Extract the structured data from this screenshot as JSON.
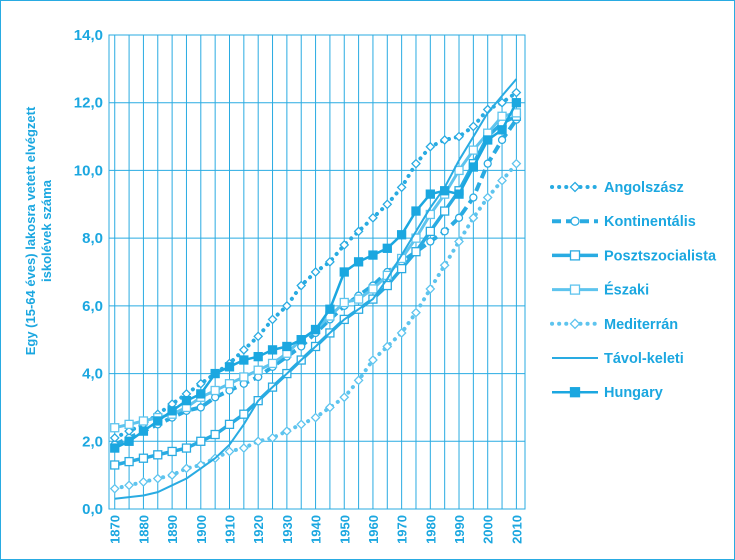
{
  "chart_data": {
    "type": "line",
    "title": "",
    "ylabel": "Egy (15-64 éves) lakosra vetett elvégzett iskolévek száma",
    "xlabel": "",
    "ylim": [
      0,
      14
    ],
    "yticks": [
      "0,0",
      "2,0",
      "4,0",
      "6,0",
      "8,0",
      "10,0",
      "12,0",
      "14,0"
    ],
    "xticks": [
      "1870",
      "1880",
      "1890",
      "1900",
      "1910",
      "1920",
      "1930",
      "1940",
      "1950",
      "1960",
      "1970",
      "1980",
      "1990",
      "2000",
      "2010"
    ],
    "x": [
      1870,
      1875,
      1880,
      1885,
      1890,
      1895,
      1900,
      1905,
      1910,
      1915,
      1920,
      1925,
      1930,
      1935,
      1940,
      1945,
      1950,
      1955,
      1960,
      1965,
      1970,
      1975,
      1980,
      1985,
      1990,
      1995,
      2000,
      2005,
      2010
    ],
    "series": [
      {
        "name": "Angolszász",
        "style": "dotted-diamond",
        "color": "#29abe2",
        "values": [
          2.1,
          2.3,
          2.5,
          2.8,
          3.1,
          3.4,
          3.7,
          4.0,
          4.3,
          4.7,
          5.1,
          5.6,
          6.0,
          6.6,
          7.0,
          7.3,
          7.8,
          8.2,
          8.6,
          9.0,
          9.5,
          10.2,
          10.7,
          10.9,
          11.0,
          11.3,
          11.8,
          12.0,
          12.3
        ]
      },
      {
        "name": "Kontinentális",
        "style": "dashed-circle",
        "color": "#29abe2",
        "values": [
          1.9,
          2.1,
          2.3,
          2.5,
          2.7,
          2.9,
          3.0,
          3.3,
          3.5,
          3.7,
          3.9,
          4.2,
          4.5,
          4.8,
          5.2,
          5.6,
          6.0,
          6.3,
          6.6,
          7.0,
          7.3,
          7.6,
          7.9,
          8.2,
          8.6,
          9.2,
          10.2,
          10.9,
          11.5
        ]
      },
      {
        "name": "Posztszocialista",
        "style": "thick-square",
        "color": "#29abe2",
        "values": [
          1.3,
          1.4,
          1.5,
          1.6,
          1.7,
          1.8,
          2.0,
          2.2,
          2.5,
          2.8,
          3.2,
          3.6,
          4.0,
          4.4,
          4.8,
          5.2,
          5.6,
          5.9,
          6.2,
          6.6,
          7.1,
          7.6,
          8.2,
          8.8,
          9.4,
          10.2,
          11.0,
          11.4,
          11.6
        ]
      },
      {
        "name": "Északi",
        "style": "medium-square",
        "color": "#5ec4ee",
        "values": [
          2.4,
          2.5,
          2.6,
          2.7,
          2.8,
          3.0,
          3.3,
          3.5,
          3.7,
          3.9,
          4.1,
          4.3,
          4.6,
          5.0,
          5.3,
          5.7,
          6.1,
          6.2,
          6.5,
          6.9,
          7.4,
          8.0,
          8.7,
          9.3,
          10.0,
          10.6,
          11.1,
          11.6,
          11.7
        ]
      },
      {
        "name": "Mediterrán",
        "style": "dotted-diamond-light",
        "color": "#5ec4ee",
        "values": [
          0.6,
          0.7,
          0.8,
          0.9,
          1.0,
          1.2,
          1.3,
          1.5,
          1.7,
          1.8,
          2.0,
          2.1,
          2.3,
          2.5,
          2.7,
          3.0,
          3.3,
          3.8,
          4.4,
          4.8,
          5.2,
          5.8,
          6.5,
          7.2,
          7.9,
          8.6,
          9.2,
          9.7,
          10.2
        ]
      },
      {
        "name": "Távol-keleti",
        "style": "solid",
        "color": "#29abe2",
        "values": [
          0.3,
          0.35,
          0.4,
          0.5,
          0.7,
          0.9,
          1.2,
          1.5,
          1.9,
          2.5,
          3.2,
          3.6,
          4.0,
          4.4,
          4.8,
          5.2,
          5.6,
          5.9,
          6.2,
          6.8,
          7.5,
          8.2,
          8.9,
          9.5,
          10.3,
          11.0,
          11.7,
          12.2,
          12.7
        ]
      },
      {
        "name": "Hungary",
        "style": "filled-square",
        "color": "#1ba7e0",
        "values": [
          1.8,
          2.0,
          2.3,
          2.6,
          2.9,
          3.2,
          3.4,
          4.0,
          4.2,
          4.4,
          4.5,
          4.7,
          4.8,
          5.0,
          5.3,
          5.9,
          7.0,
          7.3,
          7.5,
          7.7,
          8.1,
          8.8,
          9.3,
          9.4,
          9.3,
          10.1,
          10.9,
          11.2,
          12.0
        ]
      }
    ],
    "legend_placement": "right",
    "grid": true
  }
}
